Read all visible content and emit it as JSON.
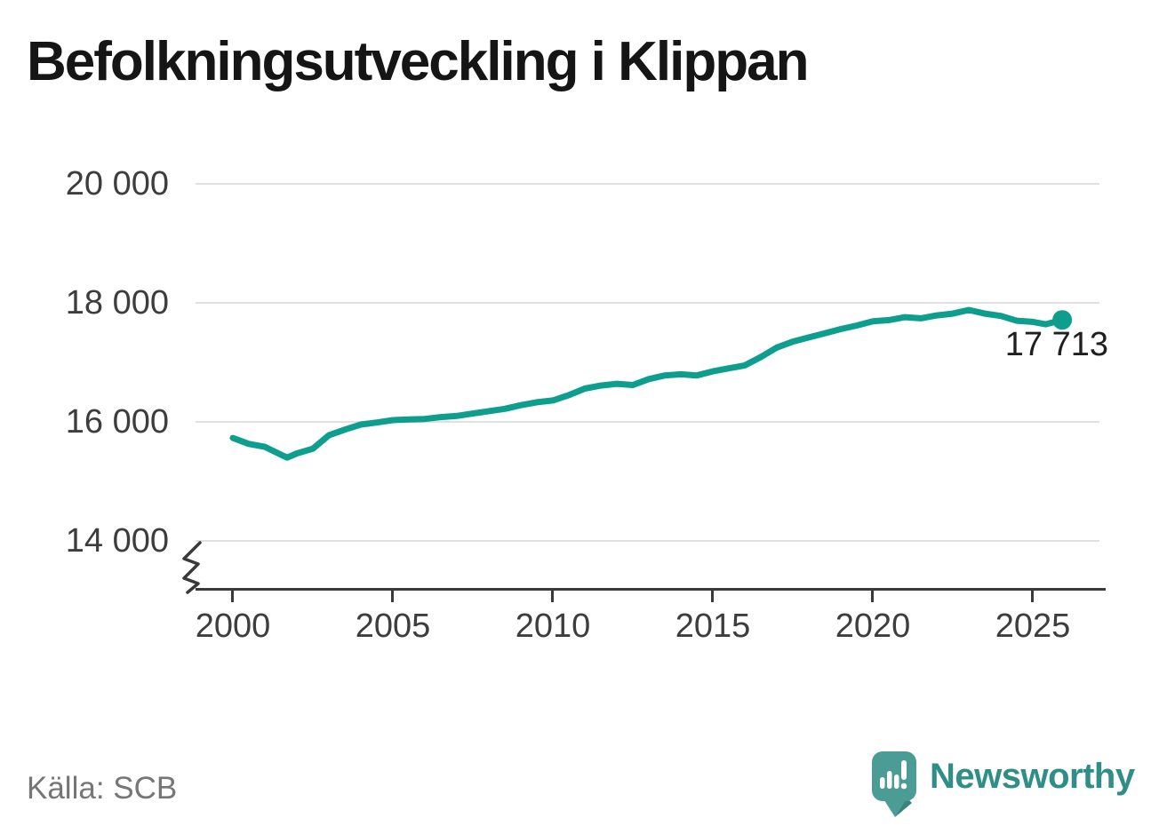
{
  "header": {
    "title": "Befolkningsutveckling i Klippan"
  },
  "footer": {
    "source": "Källa: SCB",
    "brand": "Newsworthy"
  },
  "annotation": {
    "last_value_label": "17 713"
  },
  "colors": {
    "line": "#0d9e8e",
    "axis": "#3a3a3a",
    "grid": "#e0e0e0",
    "brand_bubble": "#4a9c94",
    "brand_tail_dark": "#3d837c",
    "brand_text": "#2f8e86"
  },
  "chart_data": {
    "type": "line",
    "title": "Befolkningsutveckling i Klippan",
    "source": "Källa: SCB",
    "x": [
      2000,
      2000.5,
      2001,
      2001.5,
      2001.7,
      2002,
      2002.5,
      2003,
      2003.5,
      2004,
      2004.5,
      2005,
      2005.5,
      2006,
      2006.5,
      2007,
      2007.5,
      2008,
      2008.5,
      2009,
      2009.5,
      2010,
      2010.5,
      2011,
      2011.5,
      2012,
      2012.5,
      2013,
      2013.5,
      2014,
      2014.5,
      2015,
      2015.5,
      2016,
      2016.5,
      2017,
      2017.5,
      2018,
      2018.5,
      2019,
      2019.5,
      2020,
      2020.5,
      2021,
      2021.5,
      2022,
      2022.5,
      2023,
      2023.5,
      2024,
      2024.5,
      2025,
      2025.4,
      2025.92
    ],
    "values": [
      15730,
      15630,
      15580,
      15450,
      15400,
      15470,
      15550,
      15775,
      15870,
      15955,
      15990,
      16030,
      16040,
      16050,
      16080,
      16100,
      16140,
      16180,
      16220,
      16280,
      16330,
      16360,
      16450,
      16560,
      16610,
      16640,
      16620,
      16720,
      16780,
      16800,
      16780,
      16850,
      16900,
      16950,
      17090,
      17250,
      17350,
      17420,
      17490,
      17560,
      17620,
      17690,
      17710,
      17760,
      17740,
      17790,
      17820,
      17880,
      17820,
      17780,
      17700,
      17680,
      17640,
      17713
    ],
    "x_ticks": [
      2000,
      2005,
      2010,
      2015,
      2020,
      2025
    ],
    "x_tick_labels": [
      "2000",
      "2005",
      "2010",
      "2015",
      "2020",
      "2025"
    ],
    "y_ticks": [
      14000,
      16000,
      18000,
      20000
    ],
    "y_tick_labels": [
      "14 000",
      "16 000",
      "18 000",
      "20 000"
    ],
    "y_tick_labels_display": [
      "20 000",
      "18 000",
      "16 000",
      "14 000"
    ],
    "xlabel": "",
    "ylabel": "",
    "xlim": [
      1999.4,
      2027.3
    ],
    "ylim": [
      13600,
      20400
    ],
    "axis_break": true,
    "grid": "horizontal",
    "legend_position": "none",
    "line_color": "#0d9e8e",
    "end_point_value": 17713,
    "end_point_label": "17 713"
  }
}
